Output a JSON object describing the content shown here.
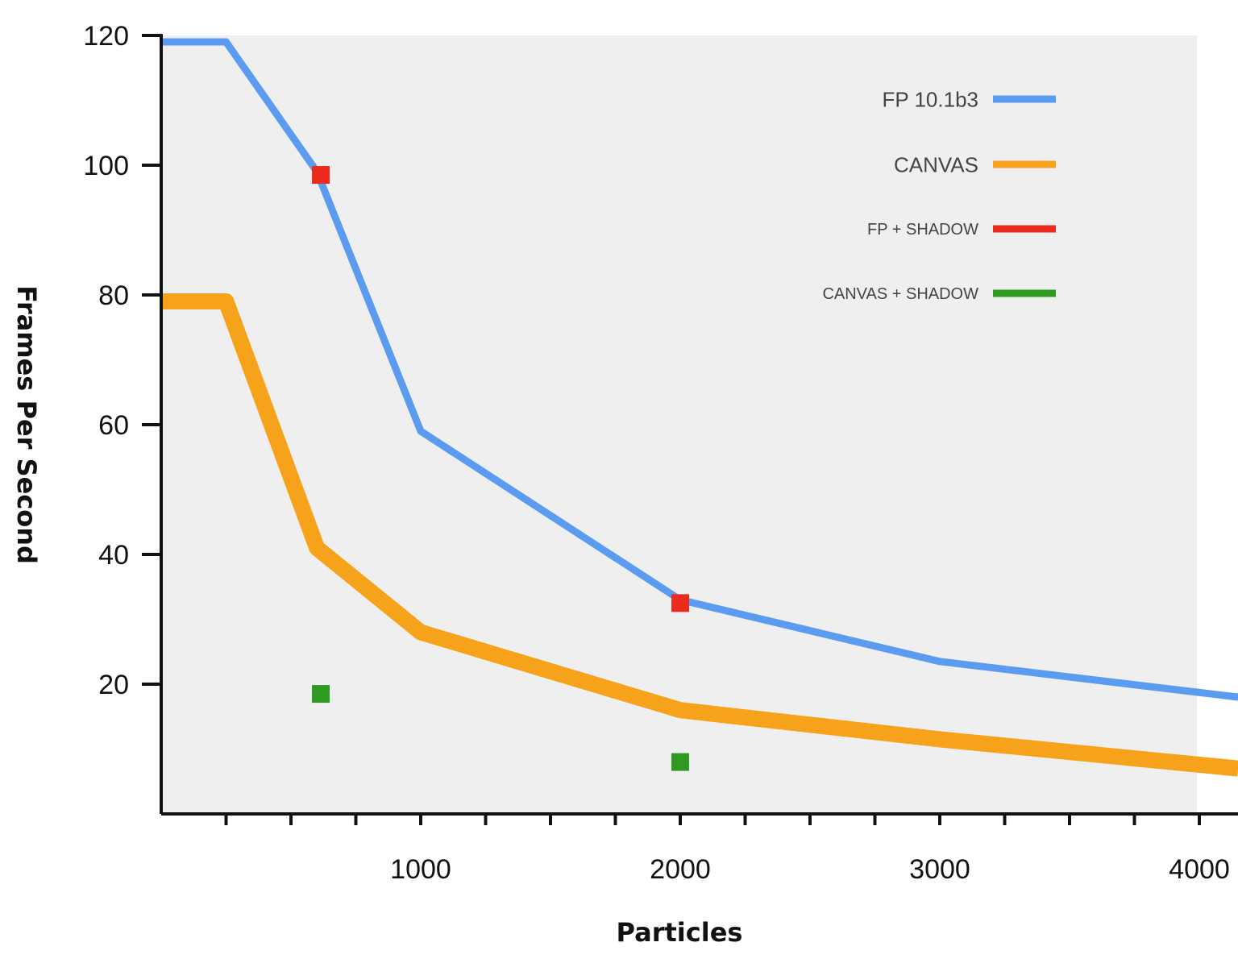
{
  "chart_data": {
    "type": "line",
    "title": "",
    "xlabel": "Particles",
    "ylabel": "Frames Per Second",
    "xlim": [
      0,
      4150
    ],
    "ylim": [
      0,
      120
    ],
    "x_ticks": [
      1000,
      2000,
      3000,
      4000
    ],
    "x_minor_step": 250,
    "y_ticks": [
      20,
      40,
      60,
      80,
      100,
      120
    ],
    "grid": false,
    "legend_position": "top-right",
    "series": [
      {
        "name": "FP 10.1b3",
        "color": "#5b9cf0",
        "style": "line",
        "width": "thin",
        "x": [
          0,
          250,
          600,
          1000,
          2000,
          3000,
          4150
        ],
        "y": [
          119,
          119,
          99,
          59,
          33,
          23.5,
          18
        ]
      },
      {
        "name": "CANVAS",
        "color": "#f7a21b",
        "style": "line",
        "width": "thick",
        "x": [
          0,
          250,
          600,
          1000,
          2000,
          3000,
          4150
        ],
        "y": [
          79,
          79,
          41,
          28,
          16,
          11.5,
          7
        ]
      },
      {
        "name": "FP + SHADOW",
        "color": "#ec2a1d",
        "style": "markers",
        "x": [
          615,
          2000
        ],
        "y": [
          98.5,
          32.5
        ]
      },
      {
        "name": "CANVAS + SHADOW",
        "color": "#2e9a22",
        "style": "markers",
        "x": [
          615,
          2000
        ],
        "y": [
          18.5,
          8
        ]
      }
    ]
  }
}
